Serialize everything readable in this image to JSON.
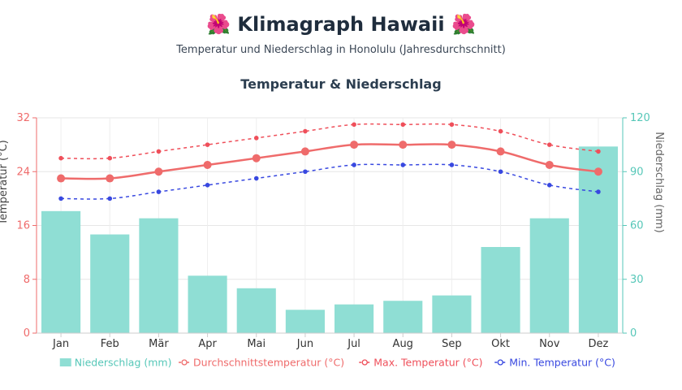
{
  "header": {
    "title": "🌺 Klimagraph Hawaii 🌺",
    "subtitle": "Temperatur und Niederschlag in Honolulu (Jahresdurchschnitt)"
  },
  "chart_data": {
    "type": "bar+line",
    "title": "Temperatur & Niederschlag",
    "categories": [
      "Jan",
      "Feb",
      "Mär",
      "Apr",
      "Mai",
      "Jun",
      "Jul",
      "Aug",
      "Sep",
      "Okt",
      "Nov",
      "Dez"
    ],
    "y_left": {
      "label": "Temperatur (°C)",
      "range": [
        0,
        32
      ],
      "ticks": [
        0,
        8,
        16,
        24,
        32
      ],
      "color": "#ef6b6b"
    },
    "y_right": {
      "label": "Niederschlag (mm)",
      "range": [
        0,
        120
      ],
      "ticks": [
        0,
        30,
        60,
        90,
        120
      ],
      "color": "#56c7b8"
    },
    "grid": true,
    "legend_position": "bottom",
    "bars": {
      "name": "Niederschlag (mm)",
      "axis": "right",
      "color": "#8fded4",
      "values": [
        68,
        55,
        64,
        32,
        25,
        13,
        16,
        18,
        21,
        48,
        64,
        104
      ]
    },
    "series": [
      {
        "name": "Durchschnittstemperatur (°C)",
        "axis": "left",
        "color": "#ef6b6b",
        "style": "solid",
        "values": [
          23,
          23,
          24,
          25,
          26,
          27,
          28,
          28,
          28,
          27,
          25,
          24
        ]
      },
      {
        "name": "Max. Temperatur (°C)",
        "axis": "left",
        "color": "#ef4f5a",
        "style": "dashed",
        "values": [
          26,
          26,
          27,
          28,
          29,
          30,
          31,
          31,
          31,
          30,
          28,
          27
        ]
      },
      {
        "name": "Min. Temperatur (°C)",
        "axis": "left",
        "color": "#3848e0",
        "style": "dashed",
        "values": [
          20,
          20,
          21,
          22,
          23,
          24,
          25,
          25,
          25,
          24,
          22,
          21
        ]
      }
    ]
  }
}
